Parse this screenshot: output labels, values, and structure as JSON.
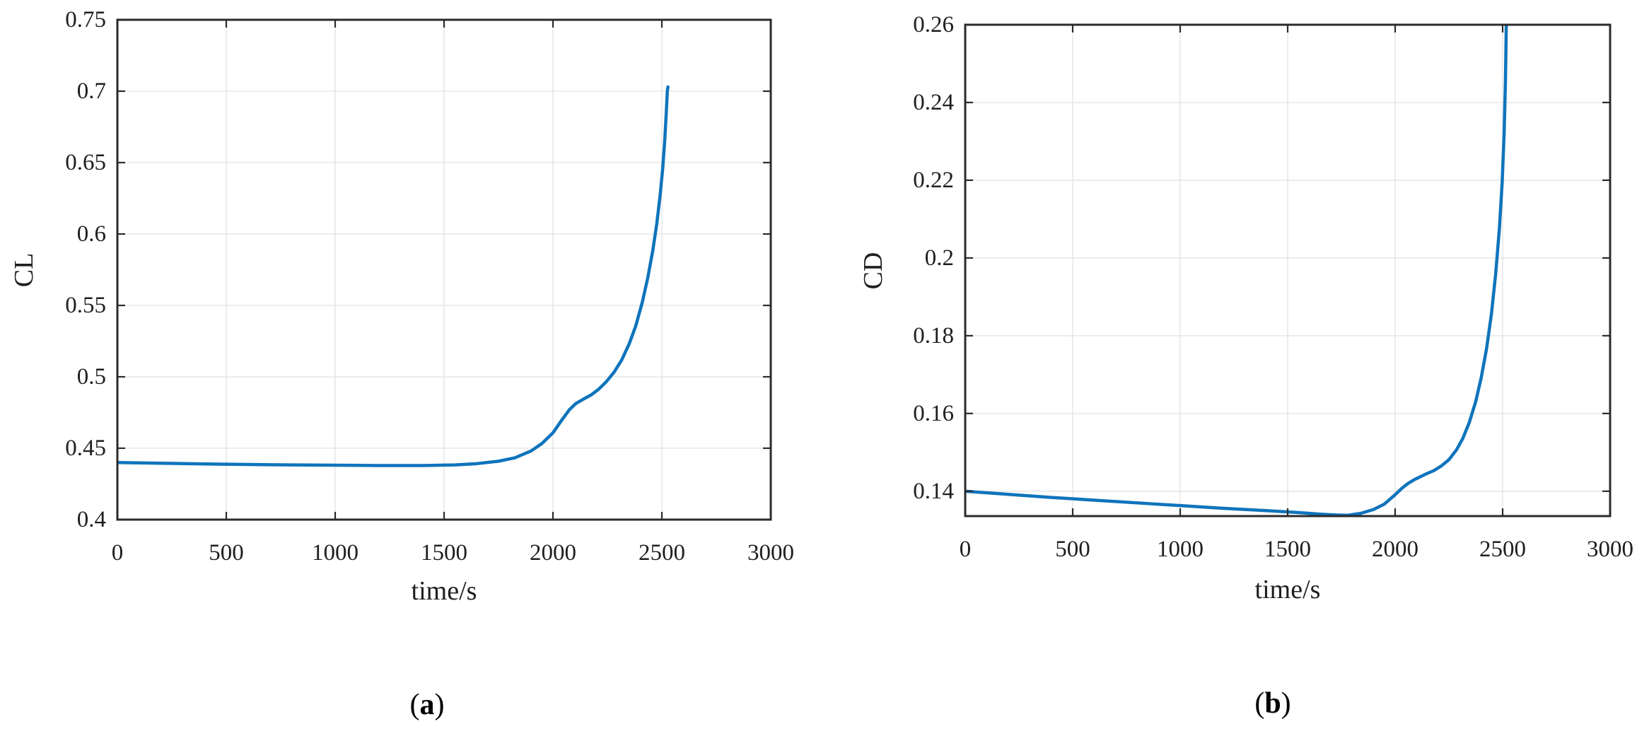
{
  "figure": {
    "background": "#ffffff",
    "axis_color": "#2b2b2b",
    "grid_color": "#e2e2e2",
    "text_color": "#1f1f1f",
    "line_color": "#0e74bc"
  },
  "chart_data": [
    {
      "id": "a",
      "type": "line",
      "xlabel": "time/s",
      "ylabel": "CL",
      "caption": {
        "prefix": "(",
        "label": "a",
        "suffix": ")"
      },
      "xlim": [
        0,
        3000
      ],
      "ylim": [
        0.4,
        0.75
      ],
      "xticks": [
        0,
        500,
        1000,
        1500,
        2000,
        2500,
        3000
      ],
      "xtick_labels": [
        "0",
        "500",
        "1000",
        "1500",
        "2000",
        "2500",
        "3000"
      ],
      "yticks": [
        0.4,
        0.45,
        0.5,
        0.55,
        0.6,
        0.65,
        0.7,
        0.75
      ],
      "ytick_labels": [
        "0.4",
        "0.45",
        "0.5",
        "0.55",
        "0.6",
        "0.65",
        "0.7",
        "0.75"
      ],
      "grid": true,
      "legend": null,
      "series": [
        {
          "name": "CL",
          "color": "#0e74bc",
          "points": [
            [
              0,
              0.44
            ],
            [
              200,
              0.4395
            ],
            [
              400,
              0.439
            ],
            [
              600,
              0.4386
            ],
            [
              800,
              0.4383
            ],
            [
              1000,
              0.4381
            ],
            [
              1200,
              0.4379
            ],
            [
              1400,
              0.4379
            ],
            [
              1550,
              0.4383
            ],
            [
              1650,
              0.4392
            ],
            [
              1750,
              0.4409
            ],
            [
              1825,
              0.4433
            ],
            [
              1900,
              0.4481
            ],
            [
              1950,
              0.4534
            ],
            [
              2000,
              0.4608
            ],
            [
              2040,
              0.4696
            ],
            [
              2075,
              0.4769
            ],
            [
              2105,
              0.4813
            ],
            [
              2140,
              0.4844
            ],
            [
              2175,
              0.4873
            ],
            [
              2210,
              0.4913
            ],
            [
              2245,
              0.4966
            ],
            [
              2280,
              0.5031
            ],
            [
              2315,
              0.5116
            ],
            [
              2350,
              0.5231
            ],
            [
              2380,
              0.5356
            ],
            [
              2410,
              0.5521
            ],
            [
              2435,
              0.5691
            ],
            [
              2458,
              0.5881
            ],
            [
              2477,
              0.6076
            ],
            [
              2492,
              0.6271
            ],
            [
              2504,
              0.6461
            ],
            [
              2513,
              0.6651
            ],
            [
              2520,
              0.6841
            ],
            [
              2525,
              0.7
            ],
            [
              2528,
              0.703
            ]
          ]
        }
      ]
    },
    {
      "id": "b",
      "type": "line",
      "xlabel": "time/s",
      "ylabel": "CD",
      "caption": {
        "prefix": "(",
        "label": "b",
        "suffix": ")"
      },
      "xlim": [
        0,
        3000
      ],
      "ylim": [
        0.1336,
        0.26
      ],
      "xticks": [
        0,
        500,
        1000,
        1500,
        2000,
        2500,
        3000
      ],
      "xtick_labels": [
        "0",
        "500",
        "1000",
        "1500",
        "2000",
        "2500",
        "3000"
      ],
      "yticks": [
        0.14,
        0.16,
        0.18,
        0.2,
        0.22,
        0.24,
        0.26
      ],
      "ytick_labels": [
        "0.14",
        "0.16",
        "0.18",
        "0.2",
        "0.22",
        "0.24",
        "0.26"
      ],
      "grid": true,
      "legend": null,
      "series": [
        {
          "name": "CD",
          "color": "#0e74bc",
          "points": [
            [
              0,
              0.14
            ],
            [
              200,
              0.1392
            ],
            [
              400,
              0.1384
            ],
            [
              600,
              0.1377
            ],
            [
              800,
              0.137
            ],
            [
              1000,
              0.1363
            ],
            [
              1200,
              0.1356
            ],
            [
              1400,
              0.135
            ],
            [
              1550,
              0.1345
            ],
            [
              1650,
              0.1341
            ],
            [
              1720,
              0.1339
            ],
            [
              1780,
              0.1338
            ],
            [
              1840,
              0.1343
            ],
            [
              1900,
              0.1353
            ],
            [
              1950,
              0.1367
            ],
            [
              2000,
              0.1391
            ],
            [
              2030,
              0.1407
            ],
            [
              2060,
              0.142
            ],
            [
              2090,
              0.143
            ],
            [
              2120,
              0.1438
            ],
            [
              2150,
              0.1446
            ],
            [
              2180,
              0.1453
            ],
            [
              2215,
              0.1465
            ],
            [
              2250,
              0.1481
            ],
            [
              2285,
              0.1506
            ],
            [
              2315,
              0.1536
            ],
            [
              2345,
              0.1577
            ],
            [
              2375,
              0.1631
            ],
            [
              2400,
              0.1691
            ],
            [
              2425,
              0.1766
            ],
            [
              2448,
              0.1856
            ],
            [
              2468,
              0.1961
            ],
            [
              2485,
              0.2076
            ],
            [
              2498,
              0.2196
            ],
            [
              2507,
              0.2321
            ],
            [
              2513,
              0.2451
            ],
            [
              2517,
              0.26
            ],
            [
              2519,
              0.268
            ]
          ]
        }
      ]
    }
  ]
}
